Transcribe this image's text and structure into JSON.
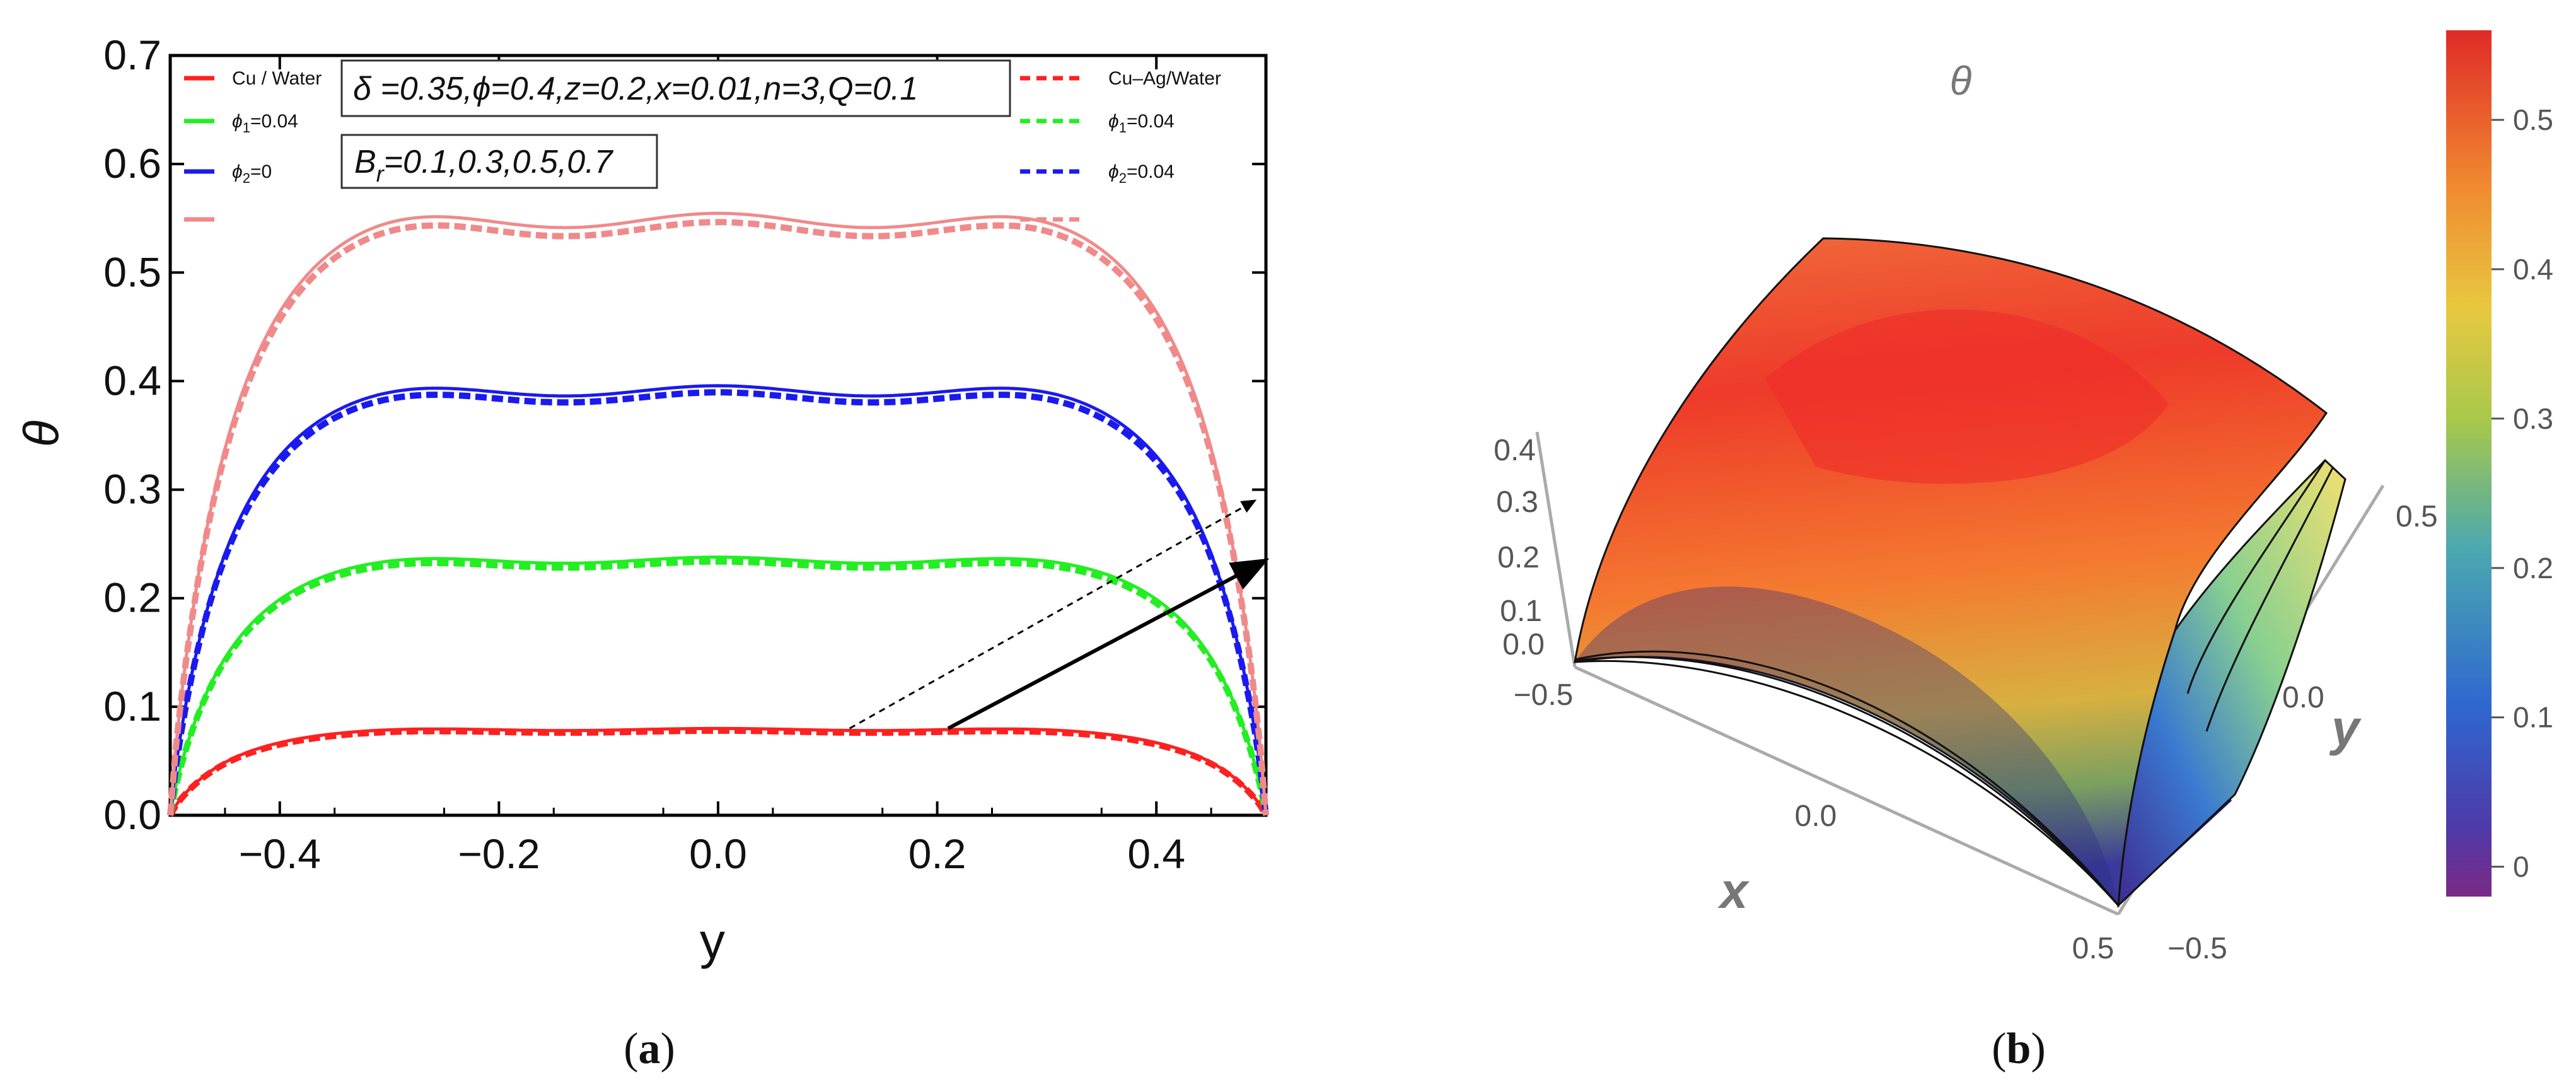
{
  "chart_data": [
    {
      "panel": "a",
      "type": "line",
      "caption": "a",
      "xlabel": "y",
      "ylabel": "θ",
      "xlim": [
        -0.5,
        0.5
      ],
      "ylim": [
        0.0,
        0.7
      ],
      "xticks": [
        "−0.4",
        "−0.2",
        "0.0",
        "0.2",
        "0.4"
      ],
      "xtick_values": [
        -0.4,
        -0.2,
        0.0,
        0.2,
        0.4
      ],
      "yticks": [
        "0.0",
        "0.1",
        "0.2",
        "0.3",
        "0.4",
        "0.5",
        "0.6",
        "0.7"
      ],
      "ytick_values": [
        0.0,
        0.1,
        0.2,
        0.3,
        0.4,
        0.5,
        0.6,
        0.7
      ],
      "params_text": "δ =0.35,ϕ=0.4,z=0.2,x=0.01,n=3,Q=0.1",
      "br_text": "B",
      "br_sub": "r",
      "br_values": "=0.1,0.3,0.5,0.7",
      "legend_left": [
        {
          "label": "Cu / Water",
          "color": "#ff2020",
          "dash": false
        },
        {
          "label": "ϕ",
          "sub": "1",
          "suffix": "=0.04",
          "color": "#22ee22",
          "dash": false
        },
        {
          "label": "ϕ",
          "sub": "2",
          "suffix": "=0",
          "color": "#1a1aee",
          "dash": false
        },
        {
          "label": "",
          "color": "#f08a8a",
          "dash": false
        }
      ],
      "legend_right": [
        {
          "label": "Cu–Ag/Water",
          "color": "#ff2020",
          "dash": true
        },
        {
          "label": "ϕ",
          "sub": "1",
          "suffix": "=0.04",
          "color": "#22ee22",
          "dash": true
        },
        {
          "label": "ϕ",
          "sub": "2",
          "suffix": "=0.04",
          "color": "#1a1aee",
          "dash": true
        },
        {
          "label": "",
          "color": "#f08a8a",
          "dash": true
        }
      ],
      "series": [
        {
          "name": "Br=0.1 Cu/Water",
          "color": "#ff2020",
          "dash": false,
          "plateau": 0.079
        },
        {
          "name": "Br=0.1 Cu-Ag/Water",
          "color": "#ff2020",
          "dash": true,
          "plateau": 0.077
        },
        {
          "name": "Br=0.3 Cu/Water",
          "color": "#22ee22",
          "dash": false,
          "plateau": 0.235
        },
        {
          "name": "Br=0.3 Cu-Ag/Water",
          "color": "#22ee22",
          "dash": true,
          "plateau": 0.231
        },
        {
          "name": "Br=0.5 Cu/Water",
          "color": "#1a1aee",
          "dash": false,
          "plateau": 0.391
        },
        {
          "name": "Br=0.5 Cu-Ag/Water",
          "color": "#1a1aee",
          "dash": true,
          "plateau": 0.385
        },
        {
          "name": "Br=0.7 Cu/Water",
          "color": "#f08a8a",
          "dash": false,
          "plateau": 0.548
        },
        {
          "name": "Br=0.7 Cu-Ag/Water",
          "color": "#f08a8a",
          "dash": true,
          "plateau": 0.54
        }
      ],
      "annotations": [
        {
          "type": "arrow",
          "style": "dashed",
          "from": [
            0.12,
            0.08
          ],
          "to": [
            0.49,
            0.29
          ]
        },
        {
          "type": "arrow",
          "style": "solid",
          "from": [
            0.21,
            0.08
          ],
          "to": [
            0.5,
            0.235
          ]
        }
      ]
    },
    {
      "panel": "b",
      "type": "surface3d",
      "caption": "b",
      "zlabel": "θ",
      "xlabel": "x",
      "ylabel": "y",
      "x_ticks": [
        "−0.5",
        "0.0",
        "0.5"
      ],
      "y_ticks": [
        "−0.5",
        "0.0",
        "0.5"
      ],
      "z_ticks": [
        "0.0",
        "0.1",
        "0.2",
        "0.3",
        "0.4"
      ],
      "colorbar_range": [
        -0.02,
        0.56
      ],
      "colorbar_ticks": [
        "0",
        "0.1",
        "0.2",
        "0.3",
        "0.4",
        "0.5"
      ],
      "colorbar_tick_values": [
        0,
        0.1,
        0.2,
        0.3,
        0.4,
        0.5
      ],
      "surface_max": 0.55
    }
  ]
}
